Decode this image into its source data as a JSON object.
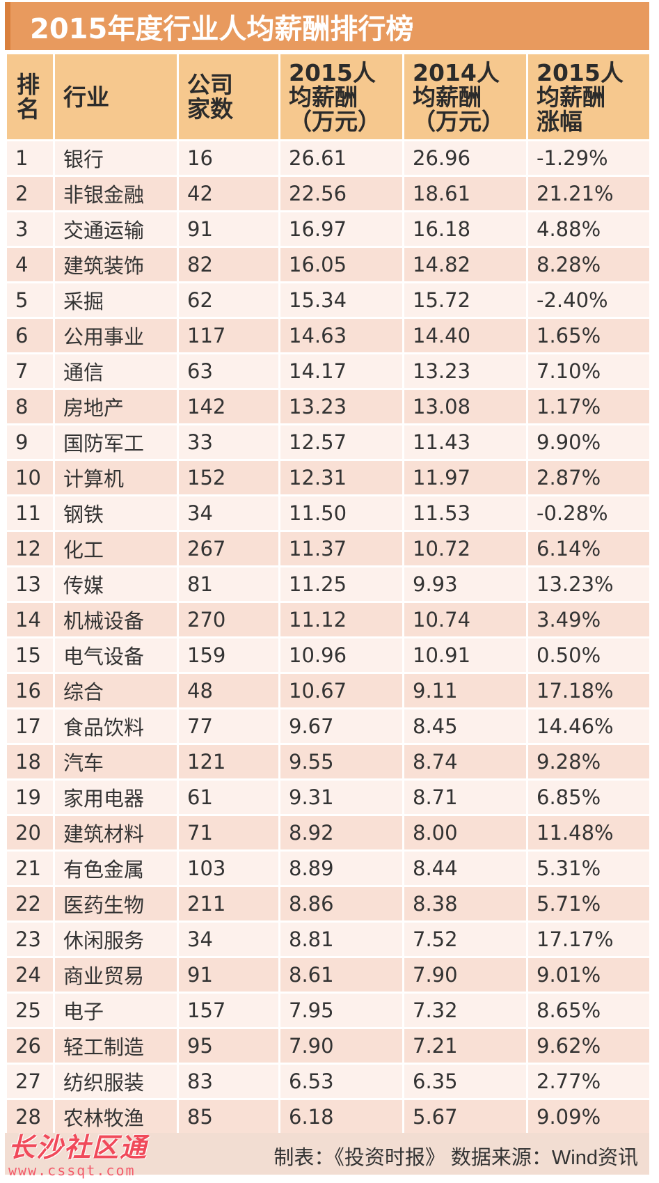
{
  "title": "2015年度行业人均薪酬排行榜",
  "headers": {
    "rank": [
      "排",
      "名"
    ],
    "industry": [
      "行业"
    ],
    "companies": [
      "公司",
      "家数"
    ],
    "pay2015": [
      "2015人",
      "均薪酬",
      "（万元）"
    ],
    "pay2014": [
      "2014人",
      "均薪酬",
      "（万元）"
    ],
    "growth": [
      "2015人",
      "均薪酬",
      "涨幅"
    ]
  },
  "rows": [
    {
      "rank": "1",
      "industry": "银行",
      "companies": "16",
      "pay2015": "26.61",
      "pay2014": "26.96",
      "growth": "-1.29%"
    },
    {
      "rank": "2",
      "industry": "非银金融",
      "companies": "42",
      "pay2015": "22.56",
      "pay2014": "18.61",
      "growth": "21.21%"
    },
    {
      "rank": "3",
      "industry": "交通运输",
      "companies": "91",
      "pay2015": "16.97",
      "pay2014": "16.18",
      "growth": "4.88%"
    },
    {
      "rank": "4",
      "industry": "建筑装饰",
      "companies": "82",
      "pay2015": "16.05",
      "pay2014": "14.82",
      "growth": "8.28%"
    },
    {
      "rank": "5",
      "industry": "采掘",
      "companies": "62",
      "pay2015": "15.34",
      "pay2014": "15.72",
      "growth": "-2.40%"
    },
    {
      "rank": "6",
      "industry": "公用事业",
      "companies": "117",
      "pay2015": "14.63",
      "pay2014": "14.40",
      "growth": "1.65%"
    },
    {
      "rank": "7",
      "industry": "通信",
      "companies": "63",
      "pay2015": "14.17",
      "pay2014": "13.23",
      "growth": "7.10%"
    },
    {
      "rank": "8",
      "industry": "房地产",
      "companies": "142",
      "pay2015": "13.23",
      "pay2014": "13.08",
      "growth": "1.17%"
    },
    {
      "rank": "9",
      "industry": "国防军工",
      "companies": "33",
      "pay2015": "12.57",
      "pay2014": "11.43",
      "growth": "9.90%"
    },
    {
      "rank": "10",
      "industry": "计算机",
      "companies": "152",
      "pay2015": "12.31",
      "pay2014": "11.97",
      "growth": "2.87%"
    },
    {
      "rank": "11",
      "industry": "钢铁",
      "companies": "34",
      "pay2015": "11.50",
      "pay2014": "11.53",
      "growth": "-0.28%"
    },
    {
      "rank": "12",
      "industry": "化工",
      "companies": "267",
      "pay2015": "11.37",
      "pay2014": "10.72",
      "growth": "6.14%"
    },
    {
      "rank": "13",
      "industry": "传媒",
      "companies": "81",
      "pay2015": "11.25",
      "pay2014": "9.93",
      "growth": "13.23%"
    },
    {
      "rank": "14",
      "industry": "机械设备",
      "companies": "270",
      "pay2015": "11.12",
      "pay2014": "10.74",
      "growth": "3.49%"
    },
    {
      "rank": "15",
      "industry": "电气设备",
      "companies": "159",
      "pay2015": "10.96",
      "pay2014": "10.91",
      "growth": "0.50%"
    },
    {
      "rank": "16",
      "industry": "综合",
      "companies": "48",
      "pay2015": "10.67",
      "pay2014": "9.11",
      "growth": "17.18%"
    },
    {
      "rank": "17",
      "industry": "食品饮料",
      "companies": "77",
      "pay2015": "9.67",
      "pay2014": "8.45",
      "growth": "14.46%"
    },
    {
      "rank": "18",
      "industry": "汽车",
      "companies": "121",
      "pay2015": "9.55",
      "pay2014": "8.74",
      "growth": "9.28%"
    },
    {
      "rank": "19",
      "industry": "家用电器",
      "companies": "61",
      "pay2015": "9.31",
      "pay2014": "8.71",
      "growth": "6.85%"
    },
    {
      "rank": "20",
      "industry": "建筑材料",
      "companies": "71",
      "pay2015": "8.92",
      "pay2014": "8.00",
      "growth": "11.48%"
    },
    {
      "rank": "21",
      "industry": "有色金属",
      "companies": "103",
      "pay2015": "8.89",
      "pay2014": "8.44",
      "growth": "5.31%"
    },
    {
      "rank": "22",
      "industry": "医药生物",
      "companies": "211",
      "pay2015": "8.86",
      "pay2014": "8.38",
      "growth": "5.71%"
    },
    {
      "rank": "23",
      "industry": "休闲服务",
      "companies": "34",
      "pay2015": "8.81",
      "pay2014": "7.52",
      "growth": "17.17%"
    },
    {
      "rank": "24",
      "industry": "商业贸易",
      "companies": "91",
      "pay2015": "8.61",
      "pay2014": "7.90",
      "growth": "9.01%"
    },
    {
      "rank": "25",
      "industry": "电子",
      "companies": "157",
      "pay2015": "7.95",
      "pay2014": "7.32",
      "growth": "8.65%"
    },
    {
      "rank": "26",
      "industry": "轻工制造",
      "companies": "95",
      "pay2015": "7.90",
      "pay2014": "7.21",
      "growth": "9.62%"
    },
    {
      "rank": "27",
      "industry": "纺织服装",
      "companies": "83",
      "pay2015": "6.53",
      "pay2014": "6.35",
      "growth": "2.77%"
    },
    {
      "rank": "28",
      "industry": "农林牧渔",
      "companies": "85",
      "pay2015": "6.18",
      "pay2014": "5.67",
      "growth": "9.09%"
    }
  ],
  "footer": {
    "credit": "制表：《投资时报》 数据来源：Wind资讯"
  },
  "watermark": {
    "name": "长沙社区通",
    "url": "www.cssqt.com"
  },
  "colors": {
    "title_bar": "#e89a5e",
    "header_bg": "#f6c88e",
    "row_light": "#fdf1ec",
    "row_dark": "#f9e0d5",
    "watermark": "#f04a5a"
  }
}
